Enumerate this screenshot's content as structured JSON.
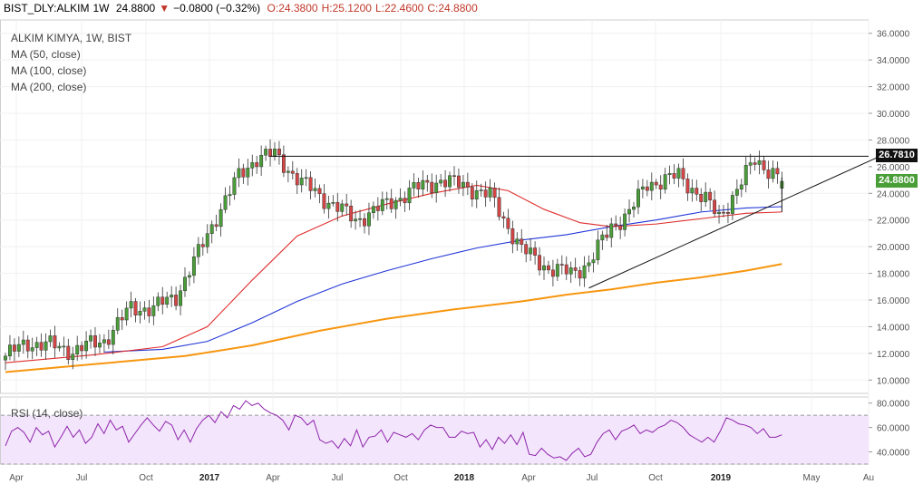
{
  "header": {
    "symbol": "BIST_DLY:ALKIM",
    "interval": "1W",
    "last": "24.8800",
    "change": "−0.0800 (−0.32%)",
    "open": "O:24.3800",
    "high": "H:25.1200",
    "low": "L:22.4600",
    "close": "C:24.8800"
  },
  "legend": {
    "title": "ALKIM KIMYA, 1W, BIST",
    "ma50": "MA (50, close)",
    "ma100": "MA (100, close)",
    "ma200": "MA (200, close)"
  },
  "rsi": {
    "label": "RSI (14, close)"
  },
  "badges": {
    "resistance": "26.7810",
    "last": "24.8800"
  },
  "colors": {
    "up": "#4a9e38",
    "down": "#d64545",
    "ma50": "#e02d2d",
    "ma100": "#2336d8",
    "ma200": "#f7960f",
    "rsi": "#8e24aa",
    "rsi_band": "#f3e5fc"
  },
  "chart_data": [
    {
      "type": "candlestick",
      "title": "ALKIM KIMYA, 1W, BIST",
      "ylim": [
        9.0,
        37.0
      ],
      "y_ticks": [
        "10.0000",
        "12.0000",
        "14.0000",
        "16.0000",
        "18.0000",
        "20.0000",
        "22.0000",
        "24.0000",
        "26.0000",
        "28.0000",
        "30.0000",
        "32.0000",
        "34.0000",
        "36.0000"
      ],
      "x_ticks": [
        "Apr",
        "Jul",
        "Oct",
        "2017",
        "Apr",
        "Jul",
        "Oct",
        "2018",
        "Apr",
        "Jul",
        "Oct",
        "2019",
        "May",
        "Au"
      ],
      "close_anchors": [
        [
          0,
          11.8
        ],
        [
          5,
          12.8
        ],
        [
          10,
          12.6
        ],
        [
          15,
          12.2
        ],
        [
          22,
          13.0
        ],
        [
          28,
          15.4
        ],
        [
          33,
          15.4
        ],
        [
          38,
          16.3
        ],
        [
          43,
          19.5
        ],
        [
          47,
          22.3
        ],
        [
          52,
          25.3
        ],
        [
          56,
          26.7
        ],
        [
          60,
          26.9
        ],
        [
          66,
          24.8
        ],
        [
          72,
          23.4
        ],
        [
          78,
          22.0
        ],
        [
          84,
          23.0
        ],
        [
          91,
          24.3
        ],
        [
          97,
          25.0
        ],
        [
          103,
          24.5
        ],
        [
          108,
          23.8
        ],
        [
          115,
          19.8
        ],
        [
          121,
          18.4
        ],
        [
          126,
          18.0
        ],
        [
          130,
          18.8
        ],
        [
          135,
          21.5
        ],
        [
          139,
          22.6
        ],
        [
          143,
          24.7
        ],
        [
          150,
          25.3
        ],
        [
          156,
          23.5
        ],
        [
          159,
          22.2
        ],
        [
          163,
          24.3
        ],
        [
          167,
          26.5
        ],
        [
          171,
          25.6
        ],
        [
          173,
          24.9
        ]
      ],
      "resistance": 26.781,
      "trendline": {
        "from": {
          "bar": 130,
          "price": 16.9
        },
        "to": {
          "bar": 195,
          "price": 26.8
        }
      },
      "series": [
        {
          "name": "MA (50, close)",
          "color": "#e02d2d"
        },
        {
          "name": "MA (100, close)",
          "color": "#2336d8"
        },
        {
          "name": "MA (200, close)",
          "color": "#f7960f"
        }
      ],
      "last_price": 24.88
    },
    {
      "type": "line",
      "title": "RSI (14, close)",
      "ylim": [
        30,
        85
      ],
      "y_ticks": [
        "40.0000",
        "60.0000",
        "80.0000"
      ],
      "bands": [
        30,
        70
      ],
      "values": [
        45,
        57,
        60,
        56,
        48,
        60,
        54,
        57,
        44,
        52,
        61,
        52,
        58,
        47,
        52,
        63,
        55,
        66,
        58,
        61,
        48,
        55,
        62,
        68,
        62,
        57,
        65,
        62,
        50,
        58,
        48,
        59,
        66,
        70,
        64,
        73,
        68,
        78,
        75,
        82,
        78,
        80,
        75,
        72,
        70,
        66,
        58,
        70,
        68,
        62,
        66,
        50,
        47,
        49,
        43,
        51,
        45,
        58,
        44,
        52,
        53,
        58,
        48,
        56,
        54,
        52,
        55,
        50,
        58,
        62,
        60,
        60,
        52,
        52,
        57,
        55,
        56,
        44,
        50,
        42,
        52,
        47,
        54,
        46,
        56,
        38,
        37,
        43,
        38,
        35,
        36,
        33,
        39,
        43,
        36,
        38,
        48,
        55,
        58,
        50,
        57,
        59,
        62,
        55,
        58,
        56,
        60,
        62,
        66,
        64,
        60,
        54,
        51,
        48,
        52,
        48,
        57,
        68,
        66,
        63,
        62,
        60,
        55,
        59,
        52,
        52,
        54
      ]
    }
  ]
}
